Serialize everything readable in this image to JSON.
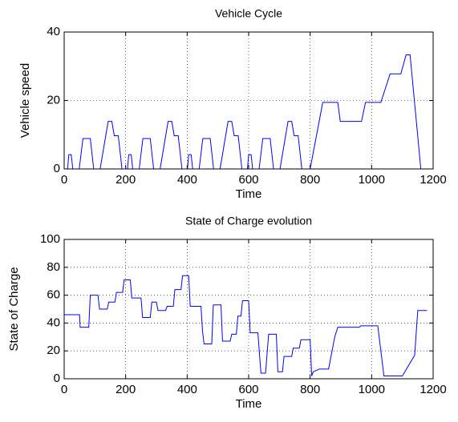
{
  "chart_data": [
    {
      "type": "line",
      "title": "Vehicle Cycle",
      "xlabel": "Time",
      "ylabel": "Vehicle speed",
      "x": [
        0,
        11,
        15,
        23,
        28,
        49,
        61,
        85,
        96,
        117,
        143,
        155,
        163,
        176,
        188,
        195,
        206,
        210,
        218,
        223,
        244,
        256,
        280,
        291,
        312,
        338,
        350,
        358,
        371,
        383,
        390,
        401,
        405,
        413,
        418,
        439,
        451,
        475,
        486,
        507,
        533,
        545,
        553,
        566,
        578,
        585,
        596,
        600,
        608,
        613,
        634,
        646,
        670,
        681,
        702,
        728,
        740,
        748,
        761,
        773,
        780,
        800,
        841,
        890,
        898,
        967,
        980,
        1030,
        1060,
        1095,
        1112,
        1125,
        1160,
        1180
      ],
      "values": [
        0,
        0,
        4.17,
        4.17,
        0,
        0,
        8.89,
        8.89,
        0,
        0,
        13.89,
        13.89,
        9.72,
        9.72,
        0,
        0,
        0,
        4.17,
        4.17,
        0,
        0,
        8.89,
        8.89,
        0,
        0,
        13.89,
        13.89,
        9.72,
        9.72,
        0,
        0,
        0,
        4.17,
        4.17,
        0,
        0,
        8.89,
        8.89,
        0,
        0,
        13.89,
        13.89,
        9.72,
        9.72,
        0,
        0,
        0,
        4.17,
        4.17,
        0,
        0,
        8.89,
        8.89,
        0,
        0,
        13.89,
        13.89,
        9.72,
        9.72,
        0,
        0,
        0,
        19.44,
        19.44,
        13.89,
        13.89,
        19.44,
        19.44,
        27.78,
        27.78,
        33.33,
        33.33,
        0,
        0
      ],
      "color": "#0000ff",
      "xlim": [
        0,
        1200
      ],
      "xticks": [
        0,
        200,
        400,
        600,
        800,
        1000,
        1200
      ],
      "ylim": [
        0,
        40
      ],
      "yticks": [
        0,
        20,
        40
      ],
      "grid": true
    },
    {
      "type": "line",
      "title": "State of Charge evolution",
      "xlabel": "Time",
      "ylabel": "State of Charge",
      "x": [
        0,
        50,
        52,
        80,
        85,
        110,
        115,
        140,
        145,
        165,
        170,
        190,
        195,
        215,
        220,
        250,
        255,
        280,
        285,
        300,
        305,
        330,
        335,
        355,
        360,
        380,
        385,
        405,
        410,
        445,
        450,
        455,
        480,
        485,
        510,
        515,
        540,
        545,
        560,
        565,
        575,
        580,
        600,
        605,
        630,
        640,
        655,
        665,
        690,
        695,
        710,
        715,
        740,
        745,
        765,
        770,
        800,
        805,
        810,
        830,
        860,
        880,
        890,
        960,
        965,
        1000,
        1020,
        1040,
        1100,
        1140,
        1150,
        1180
      ],
      "values": [
        46,
        46,
        37,
        37,
        60,
        60,
        50,
        50,
        55,
        55,
        62,
        62,
        71,
        71,
        58,
        58,
        44,
        44,
        55,
        55,
        49,
        49,
        52,
        52,
        64,
        64,
        74,
        74,
        52,
        52,
        34,
        25,
        25,
        53,
        53,
        27,
        27,
        32,
        32,
        45,
        45,
        56,
        56,
        33,
        33,
        4,
        4,
        32,
        32,
        5,
        5,
        16,
        16,
        22,
        22,
        28,
        28,
        2,
        5,
        7,
        7,
        30,
        37,
        37,
        38,
        38,
        38,
        2,
        2,
        17,
        49,
        49
      ],
      "color": "#0000ff",
      "xlim": [
        0,
        1200
      ],
      "xticks": [
        0,
        200,
        400,
        600,
        800,
        1000,
        1200
      ],
      "ylim": [
        0,
        100
      ],
      "yticks": [
        0,
        20,
        40,
        60,
        80,
        100
      ],
      "grid": true
    }
  ]
}
